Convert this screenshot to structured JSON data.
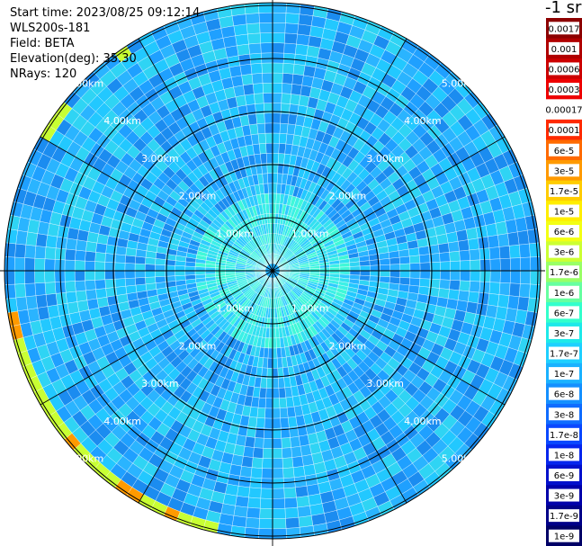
{
  "info": {
    "start_time": "Start time: 2023/08/25 09:12:14",
    "instrument": "WLS200s-181",
    "field": "Field: BETA",
    "elevation": "Elevation(deg): 35.30",
    "nrays": "NRays: 120"
  },
  "colorbar": {
    "unit_title": "-1 sr",
    "labels": [
      "0.0017",
      "0.001",
      "0.0006",
      "0.0003",
      "0.00017",
      "0.0001",
      "6e-5",
      "3e-5",
      "1.7e-5",
      "1e-5",
      "6e-6",
      "3e-6",
      "1.7e-6",
      "1e-6",
      "6e-7",
      "3e-7",
      "1.7e-7",
      "1e-7",
      "6e-8",
      "3e-8",
      "1.7e-8",
      "1e-8",
      "6e-9",
      "3e-9",
      "1.7e-9",
      "1e-9"
    ],
    "colors": [
      "#8c0000",
      "#b00000",
      "#cc0000",
      "#ee0000",
      "#ffffff",
      "#ff2a00",
      "#ff6a00",
      "#ff9a00",
      "#ffcc00",
      "#ffee00",
      "#f3ff14",
      "#ccff33",
      "#99ff66",
      "#66ffa0",
      "#33ffcc",
      "#1ee9e9",
      "#1fd0ff",
      "#1ab2ff",
      "#1490ff",
      "#0f6cff",
      "#0a48ff",
      "#0626ee",
      "#0210cc",
      "#0000aa",
      "#000088",
      "#000066"
    ]
  },
  "range_labels": [
    "1.00km",
    "2.00km",
    "3.00km",
    "4.00km",
    "5.00km"
  ],
  "field_colors": {
    "low": "#1fa0ff",
    "mid": "#22c8ff",
    "near": "#3cf0e6",
    "high": "#ff9a00",
    "edge": "#c8ff33"
  }
}
